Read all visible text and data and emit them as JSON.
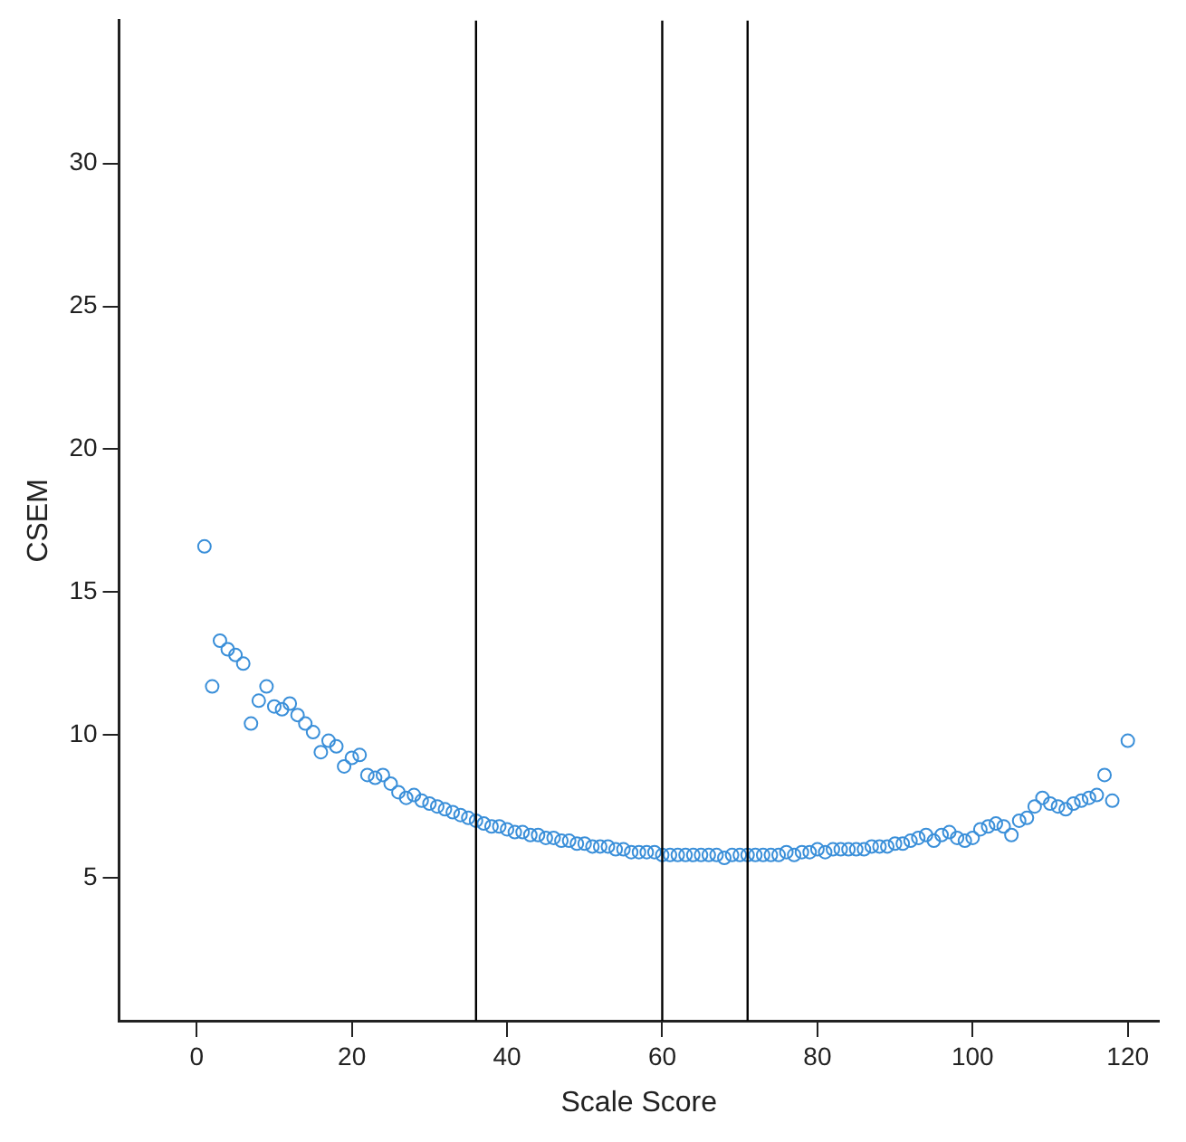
{
  "chart_data": {
    "type": "scatter",
    "xlabel": "Scale Score",
    "ylabel": "CSEM",
    "xlim": [
      -10,
      124
    ],
    "xticks": [
      0,
      20,
      40,
      60,
      80,
      100,
      120
    ],
    "ylim": [
      0,
      35
    ],
    "yticks": [
      5,
      10,
      15,
      20,
      25,
      30
    ],
    "grid": false,
    "legend": false,
    "marker": "circle",
    "ref_lines": [
      {
        "axis": "x",
        "value": 36,
        "color": "#000000"
      },
      {
        "axis": "x",
        "value": 60,
        "color": "#000000"
      },
      {
        "axis": "x",
        "value": 71,
        "color": "#000000"
      }
    ],
    "series": [
      {
        "color": "#3a8fd9",
        "x": [
          1,
          2,
          3,
          4,
          5,
          6,
          7,
          8,
          9,
          10,
          11,
          12,
          13,
          14,
          15,
          16,
          17,
          18,
          19,
          20,
          21,
          22,
          23,
          24,
          25,
          26,
          27,
          28,
          29,
          30,
          31,
          32,
          33,
          34,
          35,
          36,
          37,
          38,
          39,
          40,
          41,
          42,
          43,
          44,
          45,
          46,
          47,
          48,
          49,
          50,
          51,
          52,
          53,
          54,
          55,
          56,
          57,
          58,
          59,
          60,
          61,
          62,
          63,
          64,
          65,
          66,
          67,
          68,
          69,
          70,
          71,
          72,
          73,
          74,
          75,
          76,
          77,
          78,
          79,
          80,
          81,
          82,
          83,
          84,
          85,
          86,
          87,
          88,
          89,
          90,
          91,
          92,
          93,
          94,
          95,
          96,
          97,
          98,
          99,
          100,
          101,
          102,
          103,
          104,
          105,
          106,
          107,
          108,
          109,
          110,
          111,
          112,
          113,
          114,
          115,
          116,
          117,
          118,
          120
        ],
        "values": [
          16.6,
          11.7,
          13.3,
          13.0,
          12.8,
          12.5,
          10.4,
          11.2,
          11.7,
          11.0,
          10.9,
          11.1,
          10.7,
          10.4,
          10.1,
          9.4,
          9.8,
          9.6,
          8.9,
          9.2,
          9.3,
          8.6,
          8.5,
          8.6,
          8.3,
          8.0,
          7.8,
          7.9,
          7.7,
          7.6,
          7.5,
          7.4,
          7.3,
          7.2,
          7.1,
          7.0,
          6.9,
          6.8,
          6.8,
          6.7,
          6.6,
          6.6,
          6.5,
          6.5,
          6.4,
          6.4,
          6.3,
          6.3,
          6.2,
          6.2,
          6.1,
          6.1,
          6.1,
          6.0,
          6.0,
          5.9,
          5.9,
          5.9,
          5.9,
          5.8,
          5.8,
          5.8,
          5.8,
          5.8,
          5.8,
          5.8,
          5.8,
          5.7,
          5.8,
          5.8,
          5.8,
          5.8,
          5.8,
          5.8,
          5.8,
          5.9,
          5.8,
          5.9,
          5.9,
          6.0,
          5.9,
          6.0,
          6.0,
          6.0,
          6.0,
          6.0,
          6.1,
          6.1,
          6.1,
          6.2,
          6.2,
          6.3,
          6.4,
          6.5,
          6.3,
          6.5,
          6.6,
          6.4,
          6.3,
          6.4,
          6.7,
          6.8,
          6.9,
          6.8,
          6.5,
          7.0,
          7.1,
          7.5,
          7.8,
          7.6,
          7.5,
          7.4,
          7.6,
          7.7,
          7.8,
          7.9,
          8.6,
          7.7,
          9.8
        ]
      }
    ]
  }
}
